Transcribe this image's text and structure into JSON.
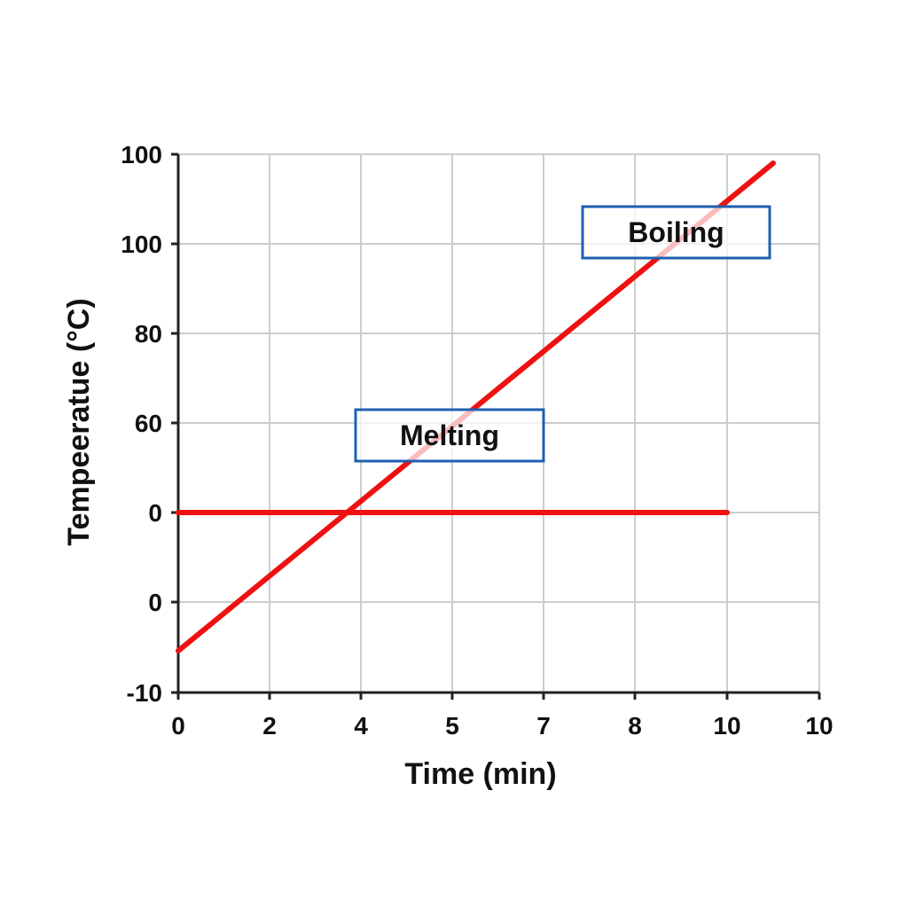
{
  "chart_data": {
    "type": "line",
    "xlabel": "Time (min)",
    "ylabel": "Tempeeratue (°C)",
    "x_ticks": [
      "0",
      "2",
      "4",
      "5",
      "7",
      "8",
      "10",
      "10"
    ],
    "y_ticks": [
      "-10",
      "0",
      "0",
      "60",
      "80",
      "100",
      "100"
    ],
    "grid": true,
    "series": [
      {
        "color": "#ee1111",
        "points": [
          [
            0,
            -10.5
          ],
          [
            10.5,
            101
          ]
        ]
      },
      {
        "color": "#ee1111",
        "points": [
          [
            0,
            0
          ],
          [
            10,
            0
          ]
        ]
      }
    ],
    "annotations": [
      {
        "text": "Melting",
        "border_color": "#1f5fb0"
      },
      {
        "text": "Boiling",
        "border_color": "#1f5fb0"
      }
    ]
  }
}
